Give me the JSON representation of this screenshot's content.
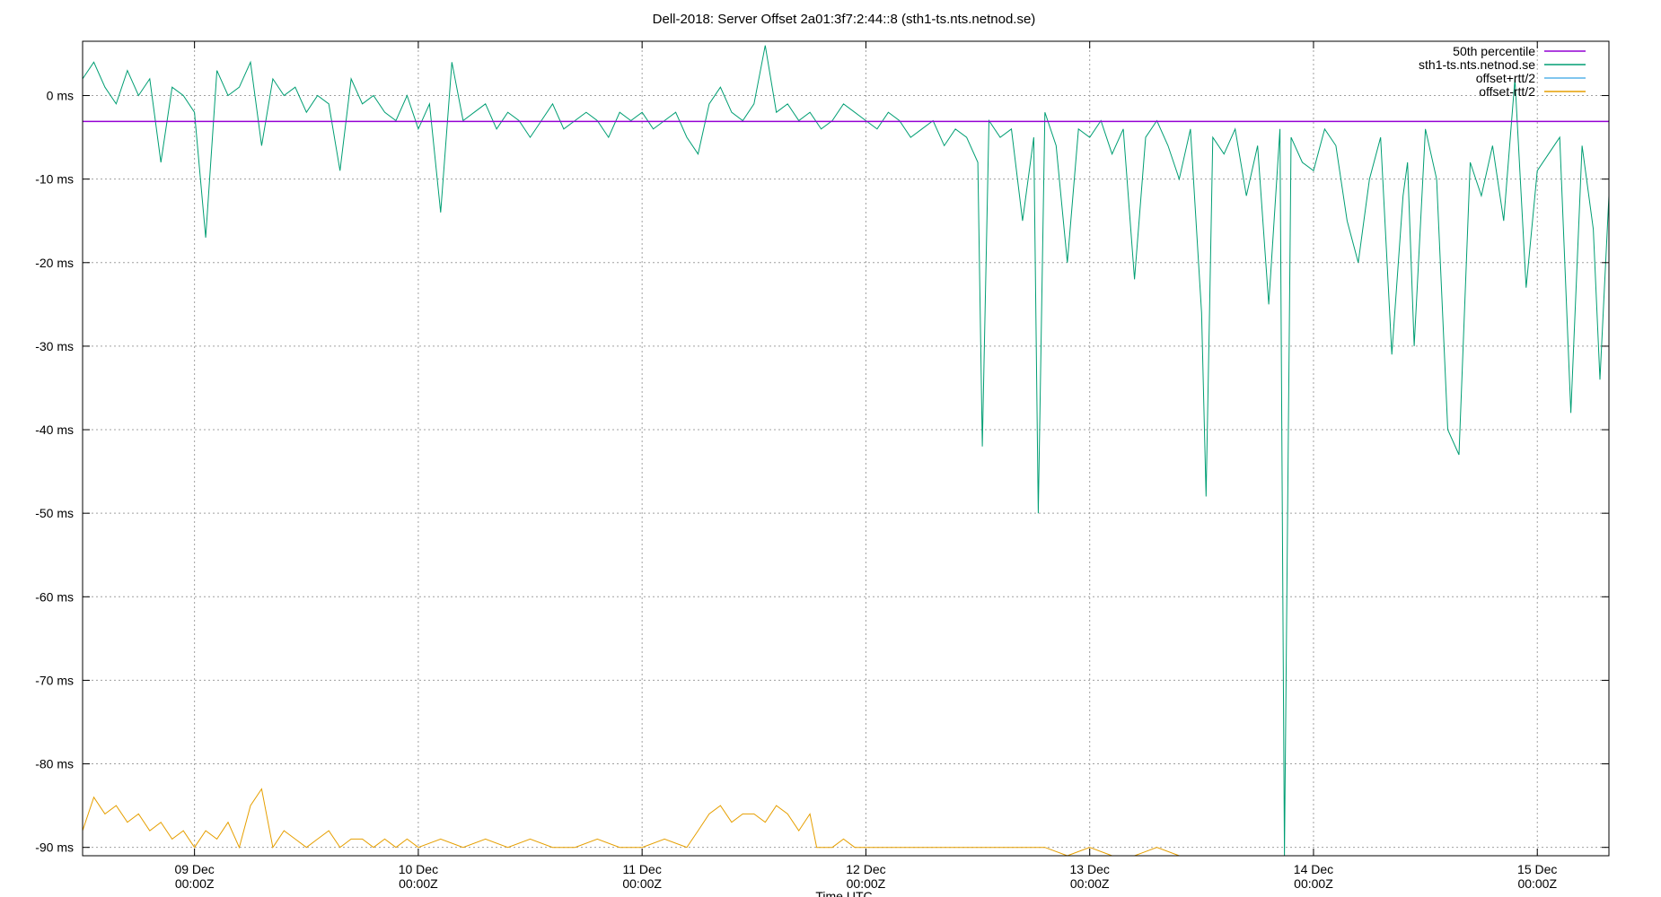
{
  "chart_data": {
    "type": "line",
    "title": "Dell-2018: Server Offset 2a01:3f7:2:44::8 (sth1-ts.nts.netnod.se)",
    "xlabel": "Time UTC",
    "ylabel": "",
    "x_unit": "days since 08 Dec 00:00Z",
    "xlim": [
      0.5,
      7.32
    ],
    "ylim": [
      -91,
      6.5
    ],
    "yticks": [
      0,
      -10,
      -20,
      -30,
      -40,
      -50,
      -60,
      -70,
      -80,
      -90
    ],
    "ytick_labels": [
      "0 ms",
      "-10 ms",
      "-20 ms",
      "-30 ms",
      "-40 ms",
      "-50 ms",
      "-60 ms",
      "-70 ms",
      "-80 ms",
      "-90 ms"
    ],
    "xticks": [
      1,
      2,
      3,
      4,
      5,
      6,
      7
    ],
    "xtick_labels": [
      [
        "09 Dec",
        "00:00Z"
      ],
      [
        "10 Dec",
        "00:00Z"
      ],
      [
        "11 Dec",
        "00:00Z"
      ],
      [
        "12 Dec",
        "00:00Z"
      ],
      [
        "13 Dec",
        "00:00Z"
      ],
      [
        "14 Dec",
        "00:00Z"
      ],
      [
        "15 Dec",
        "00:00Z"
      ]
    ],
    "grid": true,
    "legend_position": "top-right",
    "series": [
      {
        "name": "50th percentile",
        "color": "#9400d3",
        "x": [
          0.5,
          7.32
        ],
        "y": [
          -3.1,
          -3.1
        ]
      },
      {
        "name": "sth1-ts.nts.netnod.se",
        "color": "#009e73",
        "x": [
          0.5,
          0.55,
          0.6,
          0.65,
          0.7,
          0.75,
          0.8,
          0.85,
          0.9,
          0.95,
          1.0,
          1.05,
          1.1,
          1.15,
          1.2,
          1.25,
          1.3,
          1.35,
          1.4,
          1.45,
          1.5,
          1.55,
          1.6,
          1.65,
          1.7,
          1.75,
          1.8,
          1.85,
          1.9,
          1.95,
          2.0,
          2.05,
          2.1,
          2.15,
          2.2,
          2.25,
          2.3,
          2.35,
          2.4,
          2.45,
          2.5,
          2.55,
          2.6,
          2.65,
          2.7,
          2.75,
          2.8,
          2.85,
          2.9,
          2.95,
          3.0,
          3.05,
          3.1,
          3.15,
          3.2,
          3.25,
          3.3,
          3.35,
          3.4,
          3.45,
          3.5,
          3.55,
          3.6,
          3.65,
          3.7,
          3.75,
          3.8,
          3.85,
          3.9,
          3.95,
          4.0,
          4.05,
          4.1,
          4.15,
          4.2,
          4.25,
          4.3,
          4.35,
          4.4,
          4.45,
          4.5,
          4.52,
          4.55,
          4.6,
          4.65,
          4.7,
          4.75,
          4.77,
          4.8,
          4.85,
          4.9,
          4.95,
          5.0,
          5.05,
          5.1,
          5.15,
          5.2,
          5.25,
          5.3,
          5.35,
          5.4,
          5.45,
          5.5,
          5.52,
          5.55,
          5.6,
          5.65,
          5.7,
          5.75,
          5.8,
          5.85,
          5.87,
          5.9,
          5.95,
          6.0,
          6.05,
          6.1,
          6.15,
          6.2,
          6.25,
          6.3,
          6.35,
          6.4,
          6.42,
          6.45,
          6.5,
          6.55,
          6.6,
          6.65,
          6.7,
          6.75,
          6.8,
          6.85,
          6.9,
          6.95,
          7.0,
          7.05,
          7.1,
          7.15,
          7.2,
          7.25,
          7.28,
          7.32
        ],
        "y": [
          2,
          4,
          1,
          -1,
          3,
          0,
          2,
          -8,
          1,
          0,
          -2,
          -17,
          3,
          0,
          1,
          4,
          -6,
          2,
          0,
          1,
          -2,
          0,
          -1,
          -9,
          2,
          -1,
          0,
          -2,
          -3,
          0,
          -4,
          -1,
          -14,
          4,
          -3,
          -2,
          -1,
          -4,
          -2,
          -3,
          -5,
          -3,
          -1,
          -4,
          -3,
          -2,
          -3,
          -5,
          -2,
          -3,
          -2,
          -4,
          -3,
          -2,
          -5,
          -7,
          -1,
          1,
          -2,
          -3,
          -1,
          6,
          -2,
          -1,
          -3,
          -2,
          -4,
          -3,
          -1,
          -2,
          -3,
          -4,
          -2,
          -3,
          -5,
          -4,
          -3,
          -6,
          -4,
          -5,
          -8,
          -42,
          -3,
          -5,
          -4,
          -15,
          -5,
          -50,
          -2,
          -6,
          -20,
          -4,
          -5,
          -3,
          -7,
          -4,
          -22,
          -5,
          -3,
          -6,
          -10,
          -4,
          -26,
          -48,
          -5,
          -7,
          -4,
          -12,
          -6,
          -25,
          -4,
          -91,
          -5,
          -8,
          -9,
          -4,
          -6,
          -15,
          -20,
          -10,
          -5,
          -31,
          -12,
          -8,
          -30,
          -4,
          -10,
          -40,
          -43,
          -8,
          -12,
          -6,
          -15,
          2,
          -23,
          -9,
          -7,
          -5,
          -38,
          -6,
          -16,
          -34,
          -12
        ]
      },
      {
        "name": "offset+rtt/2",
        "color": "#56b4e9",
        "x": [],
        "y": []
      },
      {
        "name": "offset-rtt/2",
        "color": "#e69f00",
        "x": [
          0.5,
          0.55,
          0.6,
          0.65,
          0.7,
          0.75,
          0.8,
          0.85,
          0.9,
          0.95,
          1.0,
          1.05,
          1.1,
          1.15,
          1.2,
          1.25,
          1.3,
          1.35,
          1.4,
          1.45,
          1.5,
          1.55,
          1.6,
          1.65,
          1.7,
          1.75,
          1.8,
          1.85,
          1.9,
          1.95,
          2.0,
          2.1,
          2.2,
          2.3,
          2.4,
          2.5,
          2.6,
          2.7,
          2.8,
          2.9,
          3.0,
          3.1,
          3.2,
          3.25,
          3.3,
          3.35,
          3.4,
          3.45,
          3.5,
          3.55,
          3.6,
          3.65,
          3.7,
          3.75,
          3.78,
          3.8,
          3.85,
          3.9,
          3.95,
          4.0,
          4.1,
          4.2,
          4.3,
          4.4,
          4.5,
          4.6,
          4.7,
          4.8,
          4.9,
          5.0,
          5.1,
          5.2,
          5.3,
          5.4
        ],
        "y": [
          -88,
          -84,
          -86,
          -85,
          -87,
          -86,
          -88,
          -87,
          -89,
          -88,
          -90,
          -88,
          -89,
          -87,
          -90,
          -85,
          -83,
          -90,
          -88,
          -89,
          -90,
          -89,
          -88,
          -90,
          -89,
          -89,
          -90,
          -89,
          -90,
          -89,
          -90,
          -89,
          -90,
          -89,
          -90,
          -89,
          -90,
          -90,
          -89,
          -90,
          -90,
          -89,
          -90,
          -88,
          -86,
          -85,
          -87,
          -86,
          -86,
          -87,
          -85,
          -86,
          -88,
          -86,
          -90,
          -90,
          -90,
          -89,
          -90,
          -90,
          -90,
          -90,
          -90,
          -90,
          -90,
          -90,
          -90,
          -90,
          -91,
          -90,
          -91,
          -91,
          -90,
          -91
        ]
      }
    ]
  }
}
